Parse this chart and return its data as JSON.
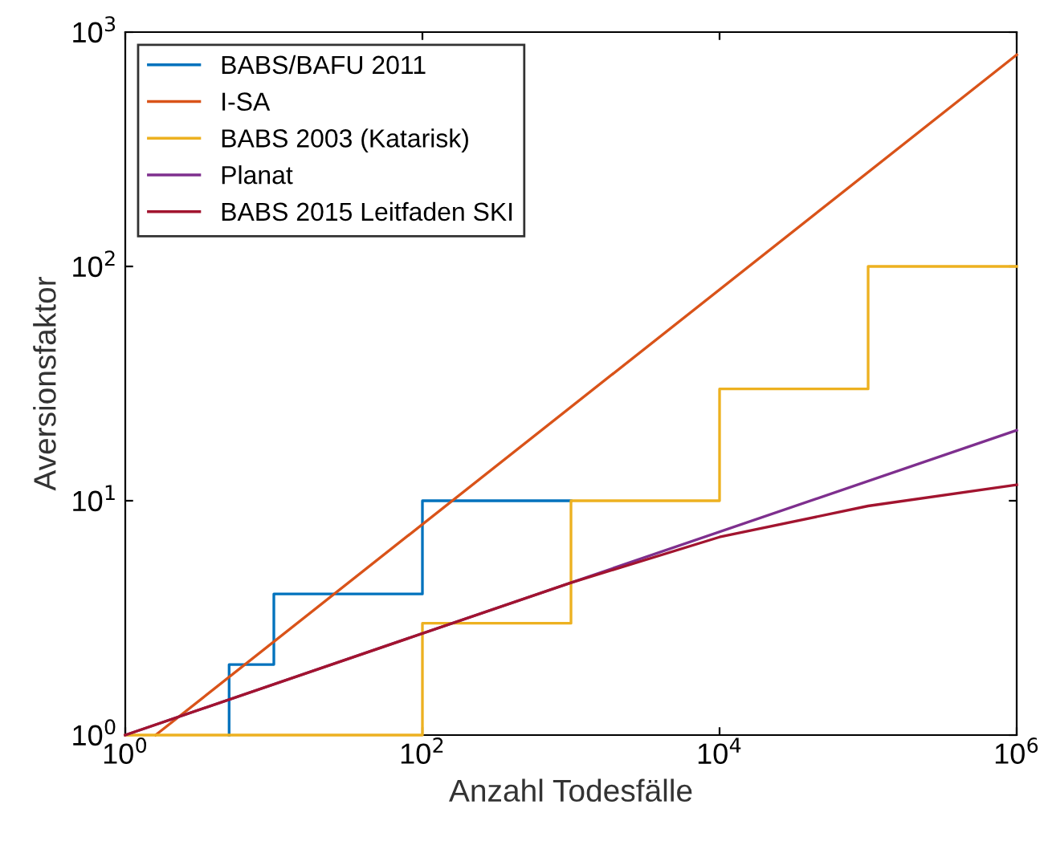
{
  "chart_data": {
    "type": "line",
    "xlabel": "Anzahl Todesfälle",
    "ylabel": "Aversionsfaktor",
    "log": "xy",
    "xlim": [
      1,
      1000000
    ],
    "ylim": [
      1,
      1000
    ],
    "xticks": [
      {
        "value": 1,
        "label": "10$^{0}$"
      },
      {
        "value": 100,
        "label": "10$^{2}$"
      },
      {
        "value": 10000,
        "label": "10$^{4}$"
      },
      {
        "value": 1000000,
        "label": "10$^{6}$"
      }
    ],
    "yticks": [
      {
        "value": 1,
        "label": "10$^{0}$"
      },
      {
        "value": 10,
        "label": "10$^{1}$"
      },
      {
        "value": 100,
        "label": "10$^{2}$"
      },
      {
        "value": 1000,
        "label": "10$^{3}$"
      }
    ],
    "grid": false,
    "legend": "top left",
    "line_style": "solid",
    "marker": "none",
    "series": [
      {
        "name": "BABS/BAFU 2011",
        "color": "#0072bd",
        "type": "step",
        "x": [
          5,
          5,
          10,
          100,
          1000
        ],
        "values": [
          1,
          2,
          4,
          10,
          10
        ]
      },
      {
        "name": "I-SA",
        "color": "#d95319",
        "x": [
          1.6,
          1000000
        ],
        "values": [
          1,
          800
        ]
      },
      {
        "name": "BABS 2003 (Katarisk)",
        "color": "#edb120",
        "type": "step",
        "x": [
          1,
          100,
          1000,
          10000,
          100000,
          1000000
        ],
        "values": [
          1,
          3,
          10,
          30,
          100,
          100
        ]
      },
      {
        "name": "Planat",
        "color": "#7e2f8e",
        "x": [
          1,
          1000000
        ],
        "values": [
          1,
          20
        ]
      },
      {
        "name": "BABS 2015 Leitfaden SKI",
        "color": "#a2142f",
        "x": [
          1,
          1000,
          10000,
          100000,
          1000000
        ],
        "values": [
          1,
          4.47,
          7,
          9.5,
          11.7
        ]
      }
    ]
  }
}
